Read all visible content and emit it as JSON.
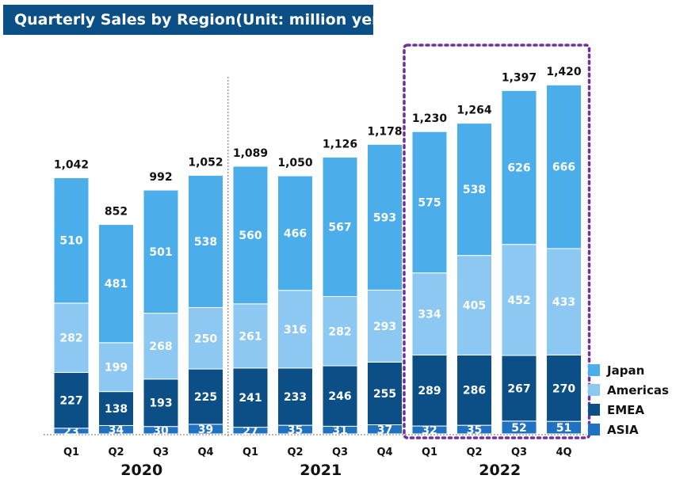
{
  "chart_data": {
    "type": "bar",
    "stacked": true,
    "title": "Quarterly Sales by Region(Unit: million yen)",
    "categories": [
      "Q1",
      "Q2",
      "Q3",
      "Q4",
      "Q1",
      "Q2",
      "Q3",
      "Q4",
      "Q1",
      "Q2",
      "Q3",
      "4Q"
    ],
    "years": [
      {
        "label": "2020",
        "start": 0,
        "end": 3
      },
      {
        "label": "2021",
        "start": 4,
        "end": 7
      },
      {
        "label": "2022",
        "start": 8,
        "end": 11
      }
    ],
    "totals": [
      "1,042",
      "852",
      "992",
      "1,052",
      "1,089",
      "1,050",
      "1,126",
      "1,178",
      "1,230",
      "1,264",
      "1,397",
      "1,420"
    ],
    "series": [
      {
        "name": "ASIA",
        "color": "#1f72c1",
        "values": [
          23,
          34,
          30,
          39,
          27,
          35,
          31,
          37,
          32,
          35,
          52,
          51
        ]
      },
      {
        "name": "EMEA",
        "color": "#0c4f86",
        "values": [
          227,
          138,
          193,
          225,
          241,
          233,
          246,
          255,
          289,
          286,
          267,
          270
        ]
      },
      {
        "name": "Americas",
        "color": "#8cc8f2",
        "values": [
          282,
          199,
          268,
          250,
          261,
          316,
          282,
          293,
          334,
          405,
          452,
          433
        ]
      },
      {
        "name": "Japan",
        "color": "#4baeea",
        "values": [
          510,
          481,
          501,
          538,
          560,
          466,
          567,
          593,
          575,
          538,
          626,
          666
        ]
      }
    ],
    "legend_order": [
      "Japan",
      "Americas",
      "EMEA",
      "ASIA"
    ],
    "legend_position": "bottom-right",
    "highlight": {
      "year": "2022",
      "style": "dotted-purple",
      "color": "#7030a0"
    },
    "ylim": [
      0,
      1420
    ]
  }
}
